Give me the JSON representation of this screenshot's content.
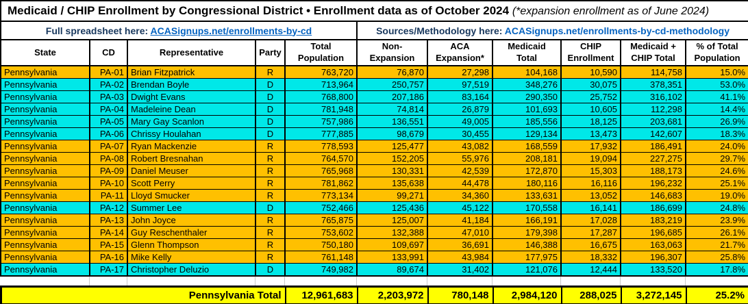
{
  "title": {
    "main": "Medicaid / CHIP Enrollment by Congressional District • Enrollment data as of October 2024",
    "note": "(*expansion enrollment as of June 2024)"
  },
  "links": {
    "spreadsheet_label": "Full spreadsheet here:",
    "spreadsheet_link_text": "ACASignups.net/enrollments-by-cd",
    "methodology_label": "Sources/Methodology here:",
    "methodology_link_text": "ACASignups.net/enrollments-by-cd-methodology"
  },
  "columns": [
    {
      "id": "state",
      "label": "State"
    },
    {
      "id": "cd",
      "label": "CD"
    },
    {
      "id": "representative",
      "label": "Representative"
    },
    {
      "id": "party",
      "label": "Party"
    },
    {
      "id": "total_population",
      "label": "Total\nPopulation"
    },
    {
      "id": "non_expansion",
      "label": "Non-\nExpansion"
    },
    {
      "id": "aca_expansion",
      "label": "ACA\nExpansion*"
    },
    {
      "id": "medicaid_total",
      "label": "Medicaid\nTotal"
    },
    {
      "id": "chip_enrollment",
      "label": "CHIP\nEnrollment"
    },
    {
      "id": "medicaid_chip_total",
      "label": "Medicaid +\nCHIP Total"
    },
    {
      "id": "pct_of_total_population",
      "label": "% of Total\nPopulation"
    }
  ],
  "party_colors": {
    "R": "#FFC000",
    "D": "#00E8E8"
  },
  "rows": [
    {
      "state": "Pennsylvania",
      "cd": "PA-01",
      "representative": "Brian Fitzpatrick",
      "party": "R",
      "total_population": "763,720",
      "non_expansion": "76,870",
      "aca_expansion": "27,298",
      "medicaid_total": "104,168",
      "chip_enrollment": "10,590",
      "medicaid_chip_total": "114,758",
      "pct_of_total_population": "15.0%"
    },
    {
      "state": "Pennsylvania",
      "cd": "PA-02",
      "representative": "Brendan Boyle",
      "party": "D",
      "total_population": "713,964",
      "non_expansion": "250,757",
      "aca_expansion": "97,519",
      "medicaid_total": "348,276",
      "chip_enrollment": "30,075",
      "medicaid_chip_total": "378,351",
      "pct_of_total_population": "53.0%"
    },
    {
      "state": "Pennsylvania",
      "cd": "PA-03",
      "representative": "Dwight Evans",
      "party": "D",
      "total_population": "768,800",
      "non_expansion": "207,186",
      "aca_expansion": "83,164",
      "medicaid_total": "290,350",
      "chip_enrollment": "25,752",
      "medicaid_chip_total": "316,102",
      "pct_of_total_population": "41.1%"
    },
    {
      "state": "Pennsylvania",
      "cd": "PA-04",
      "representative": "Madeleine Dean",
      "party": "D",
      "total_population": "781,948",
      "non_expansion": "74,814",
      "aca_expansion": "26,879",
      "medicaid_total": "101,693",
      "chip_enrollment": "10,605",
      "medicaid_chip_total": "112,298",
      "pct_of_total_population": "14.4%"
    },
    {
      "state": "Pennsylvania",
      "cd": "PA-05",
      "representative": "Mary Gay Scanlon",
      "party": "D",
      "total_population": "757,986",
      "non_expansion": "136,551",
      "aca_expansion": "49,005",
      "medicaid_total": "185,556",
      "chip_enrollment": "18,125",
      "medicaid_chip_total": "203,681",
      "pct_of_total_population": "26.9%"
    },
    {
      "state": "Pennsylvania",
      "cd": "PA-06",
      "representative": "Chrissy Houlahan",
      "party": "D",
      "total_population": "777,885",
      "non_expansion": "98,679",
      "aca_expansion": "30,455",
      "medicaid_total": "129,134",
      "chip_enrollment": "13,473",
      "medicaid_chip_total": "142,607",
      "pct_of_total_population": "18.3%"
    },
    {
      "state": "Pennsylvania",
      "cd": "PA-07",
      "representative": "Ryan Mackenzie",
      "party": "R",
      "total_population": "778,593",
      "non_expansion": "125,477",
      "aca_expansion": "43,082",
      "medicaid_total": "168,559",
      "chip_enrollment": "17,932",
      "medicaid_chip_total": "186,491",
      "pct_of_total_population": "24.0%"
    },
    {
      "state": "Pennsylvania",
      "cd": "PA-08",
      "representative": "Robert Bresnahan",
      "party": "R",
      "total_population": "764,570",
      "non_expansion": "152,205",
      "aca_expansion": "55,976",
      "medicaid_total": "208,181",
      "chip_enrollment": "19,094",
      "medicaid_chip_total": "227,275",
      "pct_of_total_population": "29.7%"
    },
    {
      "state": "Pennsylvania",
      "cd": "PA-09",
      "representative": "Daniel Meuser",
      "party": "R",
      "total_population": "765,968",
      "non_expansion": "130,331",
      "aca_expansion": "42,539",
      "medicaid_total": "172,870",
      "chip_enrollment": "15,303",
      "medicaid_chip_total": "188,173",
      "pct_of_total_population": "24.6%"
    },
    {
      "state": "Pennsylvania",
      "cd": "PA-10",
      "representative": "Scott Perry",
      "party": "R",
      "total_population": "781,862",
      "non_expansion": "135,638",
      "aca_expansion": "44,478",
      "medicaid_total": "180,116",
      "chip_enrollment": "16,116",
      "medicaid_chip_total": "196,232",
      "pct_of_total_population": "25.1%"
    },
    {
      "state": "Pennsylvania",
      "cd": "PA-11",
      "representative": "Lloyd Smucker",
      "party": "R",
      "total_population": "773,134",
      "non_expansion": "99,271",
      "aca_expansion": "34,360",
      "medicaid_total": "133,631",
      "chip_enrollment": "13,052",
      "medicaid_chip_total": "146,683",
      "pct_of_total_population": "19.0%"
    },
    {
      "state": "Pennsylvania",
      "cd": "PA-12",
      "representative": "Summer Lee",
      "party": "D",
      "total_population": "752,466",
      "non_expansion": "125,436",
      "aca_expansion": "45,122",
      "medicaid_total": "170,558",
      "chip_enrollment": "16,141",
      "medicaid_chip_total": "186,699",
      "pct_of_total_population": "24.8%"
    },
    {
      "state": "Pennsylvania",
      "cd": "PA-13",
      "representative": "John Joyce",
      "party": "R",
      "total_population": "765,875",
      "non_expansion": "125,007",
      "aca_expansion": "41,184",
      "medicaid_total": "166,191",
      "chip_enrollment": "17,028",
      "medicaid_chip_total": "183,219",
      "pct_of_total_population": "23.9%"
    },
    {
      "state": "Pennsylvania",
      "cd": "PA-14",
      "representative": "Guy Reschenthaler",
      "party": "R",
      "total_population": "753,602",
      "non_expansion": "132,388",
      "aca_expansion": "47,010",
      "medicaid_total": "179,398",
      "chip_enrollment": "17,287",
      "medicaid_chip_total": "196,685",
      "pct_of_total_population": "26.1%"
    },
    {
      "state": "Pennsylvania",
      "cd": "PA-15",
      "representative": "Glenn Thompson",
      "party": "R",
      "total_population": "750,180",
      "non_expansion": "109,697",
      "aca_expansion": "36,691",
      "medicaid_total": "146,388",
      "chip_enrollment": "16,675",
      "medicaid_chip_total": "163,063",
      "pct_of_total_population": "21.7%"
    },
    {
      "state": "Pennsylvania",
      "cd": "PA-16",
      "representative": "Mike Kelly",
      "party": "R",
      "total_population": "761,148",
      "non_expansion": "133,991",
      "aca_expansion": "43,984",
      "medicaid_total": "177,975",
      "chip_enrollment": "18,332",
      "medicaid_chip_total": "196,307",
      "pct_of_total_population": "25.8%"
    },
    {
      "state": "Pennsylvania",
      "cd": "PA-17",
      "representative": "Christopher Deluzio",
      "party": "D",
      "total_population": "749,982",
      "non_expansion": "89,674",
      "aca_expansion": "31,402",
      "medicaid_total": "121,076",
      "chip_enrollment": "12,444",
      "medicaid_chip_total": "133,520",
      "pct_of_total_population": "17.8%"
    }
  ],
  "totals": {
    "label": "Pennsylvania Total",
    "total_population": "12,961,683",
    "non_expansion": "2,203,972",
    "aca_expansion": "780,148",
    "medicaid_total": "2,984,120",
    "chip_enrollment": "288,025",
    "medicaid_chip_total": "3,272,145",
    "pct_of_total_population": "25.2%",
    "background": "#FFFF00"
  }
}
